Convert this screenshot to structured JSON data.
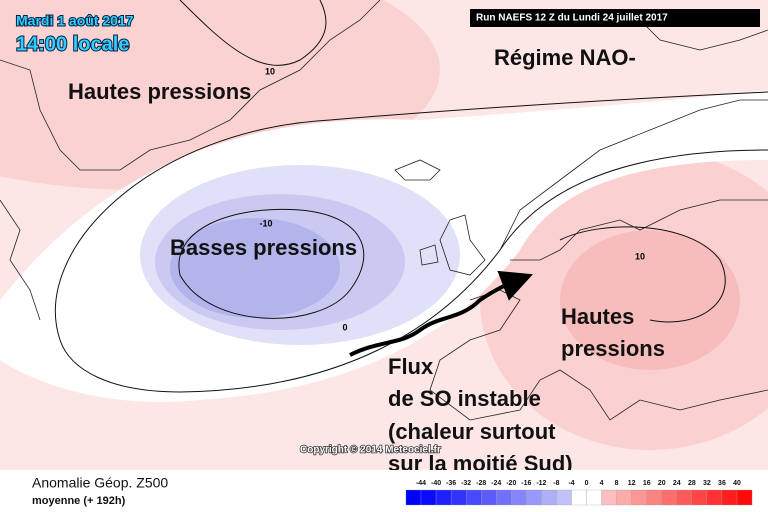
{
  "header": {
    "date": "Mardi 1 août 2017",
    "time": "14:00 locale",
    "run": "Run NAEFS 12 Z du Lundi 24 juillet 2017"
  },
  "annotations": {
    "regime": "Régime NAO-",
    "north": "Hautes pressions",
    "low": "Basses pressions",
    "east": [
      "Hautes",
      "pressions"
    ],
    "flow": [
      "Flux",
      "de SO instable",
      "(chaleur surtout",
      "sur la moitié Sud)"
    ]
  },
  "contour_labels": [
    "10",
    "-10",
    "0",
    "10"
  ],
  "copyright": "Copyright © 2014 Meteociel.fr",
  "footer": {
    "title": "Anomalie Géop. Z500",
    "subtitle": "moyenne (+ 192h)"
  },
  "legend": {
    "ticks": [
      -44,
      -40,
      -36,
      -32,
      -28,
      -24,
      -20,
      -16,
      -12,
      -8,
      -4,
      0,
      4,
      8,
      12,
      16,
      20,
      24,
      28,
      32,
      36,
      40
    ]
  }
}
